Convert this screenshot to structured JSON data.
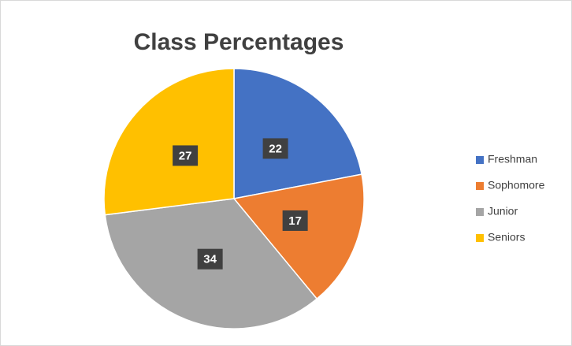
{
  "chart_data": {
    "type": "pie",
    "title": "Class Percentages",
    "categories": [
      "Freshman",
      "Sophomore",
      "Junior",
      "Seniors"
    ],
    "values": [
      22,
      17,
      34,
      27
    ],
    "colors": [
      "#4472c4",
      "#ed7d31",
      "#a5a5a5",
      "#ffc000"
    ],
    "legend": "right"
  }
}
